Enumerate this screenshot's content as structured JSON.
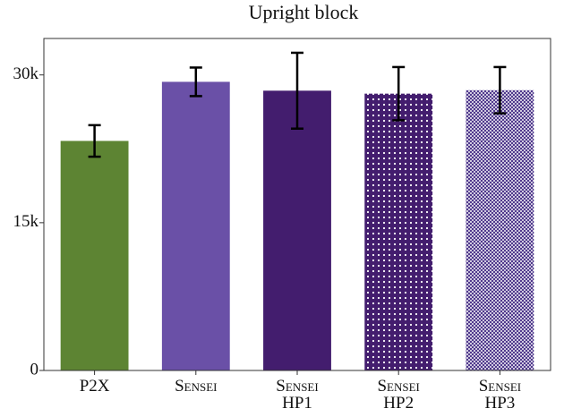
{
  "chart_data": {
    "type": "bar",
    "title": "Upright block",
    "categories": [
      "P2X",
      "Sensei",
      "Sensei\nHP1",
      "Sensei\nHP2",
      "Sensei\nHP3"
    ],
    "values": [
      23300,
      29300,
      28400,
      28100,
      28450
    ],
    "errors": [
      1600,
      1450,
      3850,
      2700,
      2350
    ],
    "colors": [
      "#5d8433",
      "#6a50a7",
      "#431d6e",
      "#431d6e",
      "#432a84"
    ],
    "hatch": [
      null,
      null,
      null,
      "dots",
      "cross"
    ],
    "ylim": [
      0,
      33700
    ],
    "yticks": [
      0,
      {
        "value": 15000,
        "label": "15k"
      },
      {
        "value": 30000,
        "label": "30k"
      }
    ]
  }
}
